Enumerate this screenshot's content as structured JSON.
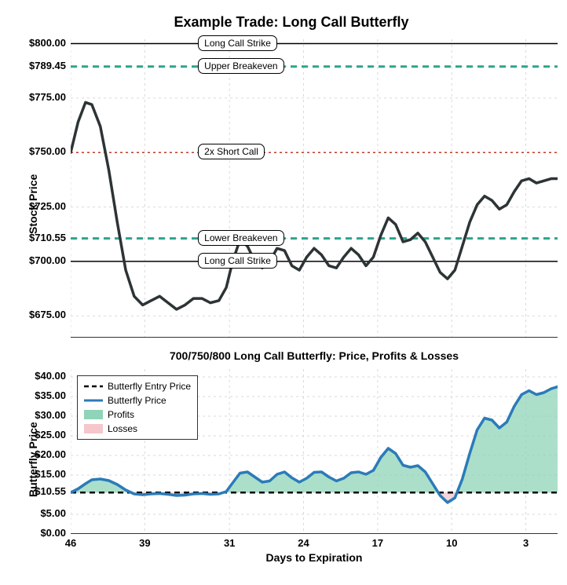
{
  "title": "Example Trade: Long Call Butterfly",
  "top": {
    "ylabel": "Stock Price",
    "ylim": [
      665,
      802
    ],
    "background_color": "#ffffff",
    "grid_color": "#d9d9d9",
    "yticks": [
      {
        "v": 675,
        "label": "$675.00"
      },
      {
        "v": 700,
        "label": "$700.00"
      },
      {
        "v": 710.55,
        "label": "$710.55"
      },
      {
        "v": 725,
        "label": "$725.00"
      },
      {
        "v": 750,
        "label": "$750.00"
      },
      {
        "v": 775,
        "label": "$775.00"
      },
      {
        "v": 789.45,
        "label": "$789.45"
      },
      {
        "v": 800,
        "label": "$800.00"
      }
    ],
    "hlines": [
      {
        "v": 800,
        "color": "#000000",
        "dash": "",
        "width": 1.5,
        "label": "Long Call Strike"
      },
      {
        "v": 789.45,
        "color": "#2ca58d",
        "dash": "8,6",
        "width": 3,
        "label": "Upper Breakeven"
      },
      {
        "v": 750,
        "color": "#c0392b",
        "dash": "3,4",
        "width": 1.5,
        "label": "2x Short Call"
      },
      {
        "v": 710.55,
        "color": "#2ca58d",
        "dash": "8,6",
        "width": 3,
        "label": "Lower Breakeven"
      },
      {
        "v": 700,
        "color": "#000000",
        "dash": "",
        "width": 1.5,
        "label": "Long Call Strike"
      }
    ],
    "series": {
      "color": "#2d3436",
      "width": 3.5,
      "data": [
        [
          46,
          750
        ],
        [
          45.3,
          764
        ],
        [
          44.6,
          773
        ],
        [
          44.0,
          772
        ],
        [
          43.2,
          762
        ],
        [
          42.4,
          742
        ],
        [
          41.6,
          718
        ],
        [
          40.8,
          696
        ],
        [
          40.0,
          684
        ],
        [
          39.2,
          680
        ],
        [
          38.4,
          682
        ],
        [
          37.6,
          684
        ],
        [
          36.8,
          681
        ],
        [
          36.0,
          678
        ],
        [
          35.2,
          680
        ],
        [
          34.4,
          683
        ],
        [
          33.6,
          683
        ],
        [
          32.8,
          681
        ],
        [
          32.0,
          682
        ],
        [
          31.3,
          688
        ],
        [
          30.7,
          700
        ],
        [
          30.0,
          710
        ],
        [
          29.3,
          707
        ],
        [
          28.6,
          700
        ],
        [
          27.9,
          697
        ],
        [
          27.2,
          700
        ],
        [
          26.5,
          706
        ],
        [
          25.8,
          705
        ],
        [
          25.1,
          698
        ],
        [
          24.4,
          696
        ],
        [
          23.7,
          702
        ],
        [
          23.0,
          706
        ],
        [
          22.3,
          703
        ],
        [
          21.6,
          698
        ],
        [
          20.9,
          697
        ],
        [
          20.2,
          702
        ],
        [
          19.5,
          706
        ],
        [
          18.8,
          703
        ],
        [
          18.1,
          698
        ],
        [
          17.4,
          702
        ],
        [
          16.7,
          712
        ],
        [
          16.0,
          720
        ],
        [
          15.3,
          717
        ],
        [
          14.6,
          709
        ],
        [
          13.9,
          710
        ],
        [
          13.2,
          713
        ],
        [
          12.5,
          709
        ],
        [
          11.8,
          702
        ],
        [
          11.1,
          695
        ],
        [
          10.4,
          692
        ],
        [
          9.7,
          696
        ],
        [
          9.0,
          707
        ],
        [
          8.3,
          718
        ],
        [
          7.6,
          726
        ],
        [
          6.9,
          730
        ],
        [
          6.2,
          728
        ],
        [
          5.5,
          724
        ],
        [
          4.8,
          726
        ],
        [
          4.1,
          732
        ],
        [
          3.4,
          737
        ],
        [
          2.7,
          738
        ],
        [
          2.0,
          736
        ],
        [
          1.3,
          737
        ],
        [
          0.6,
          738
        ],
        [
          0,
          738
        ]
      ]
    }
  },
  "bottom": {
    "title": "700/750/800 Long Call Butterfly: Price, Profits & Losses",
    "ylabel": "Butterfly Price",
    "xlabel": "Days to Expiration",
    "ylim": [
      0,
      42
    ],
    "background_color": "#ffffff",
    "grid_color": "#d9d9d9",
    "yticks": [
      {
        "v": 0,
        "label": "$0.00"
      },
      {
        "v": 5,
        "label": "$5.00"
      },
      {
        "v": 10.55,
        "label": "$10.55"
      },
      {
        "v": 15,
        "label": "$15.00"
      },
      {
        "v": 20,
        "label": "$20.00"
      },
      {
        "v": 25,
        "label": "$25.00"
      },
      {
        "v": 30,
        "label": "$30.00"
      },
      {
        "v": 35,
        "label": "$35.00"
      },
      {
        "v": 40,
        "label": "$40.00"
      }
    ],
    "xticks": [
      46,
      39,
      31,
      24,
      17,
      10,
      3
    ],
    "entry_price": 10.55,
    "entry_line": {
      "color": "#000000",
      "dash": "7,5",
      "width": 2.5
    },
    "series": {
      "color": "#2b7bb9",
      "width": 3.5,
      "profit_fill": "#8fd4b8",
      "loss_fill": "#f5c6cb",
      "fill_opacity": 0.75,
      "data": [
        [
          46,
          10.55
        ],
        [
          45.3,
          11.5
        ],
        [
          44.6,
          12.8
        ],
        [
          44.0,
          13.8
        ],
        [
          43.2,
          14.0
        ],
        [
          42.4,
          13.6
        ],
        [
          41.6,
          12.6
        ],
        [
          40.8,
          11.2
        ],
        [
          40.0,
          10.2
        ],
        [
          39.2,
          10.0
        ],
        [
          38.4,
          10.2
        ],
        [
          37.6,
          10.3
        ],
        [
          36.8,
          10.1
        ],
        [
          36.0,
          9.8
        ],
        [
          35.2,
          9.9
        ],
        [
          34.4,
          10.2
        ],
        [
          33.6,
          10.3
        ],
        [
          32.8,
          10.1
        ],
        [
          32.0,
          10.2
        ],
        [
          31.3,
          10.8
        ],
        [
          30.7,
          13.0
        ],
        [
          30.0,
          15.5
        ],
        [
          29.3,
          15.8
        ],
        [
          28.6,
          14.5
        ],
        [
          27.9,
          13.2
        ],
        [
          27.2,
          13.5
        ],
        [
          26.5,
          15.2
        ],
        [
          25.8,
          15.8
        ],
        [
          25.1,
          14.3
        ],
        [
          24.4,
          13.2
        ],
        [
          23.7,
          14.2
        ],
        [
          23.0,
          15.7
        ],
        [
          22.3,
          15.8
        ],
        [
          21.6,
          14.5
        ],
        [
          20.9,
          13.5
        ],
        [
          20.2,
          14.2
        ],
        [
          19.5,
          15.6
        ],
        [
          18.8,
          15.8
        ],
        [
          18.1,
          15.2
        ],
        [
          17.4,
          16.2
        ],
        [
          16.7,
          19.5
        ],
        [
          16.0,
          21.8
        ],
        [
          15.3,
          20.5
        ],
        [
          14.6,
          17.5
        ],
        [
          13.9,
          17.0
        ],
        [
          13.2,
          17.4
        ],
        [
          12.5,
          15.8
        ],
        [
          11.8,
          12.8
        ],
        [
          11.1,
          9.8
        ],
        [
          10.4,
          8.0
        ],
        [
          9.7,
          9.2
        ],
        [
          9.0,
          14.0
        ],
        [
          8.3,
          20.5
        ],
        [
          7.6,
          26.5
        ],
        [
          6.9,
          29.5
        ],
        [
          6.2,
          29.0
        ],
        [
          5.5,
          27.0
        ],
        [
          4.8,
          28.5
        ],
        [
          4.1,
          32.5
        ],
        [
          3.4,
          35.5
        ],
        [
          2.7,
          36.5
        ],
        [
          2.0,
          35.5
        ],
        [
          1.3,
          36.0
        ],
        [
          0.6,
          37.0
        ],
        [
          0,
          37.5
        ]
      ]
    },
    "legend": {
      "entries": [
        {
          "label": "Butterfly Entry Price",
          "type": "line",
          "color": "#000000",
          "dash": "6,4",
          "width": 2.5
        },
        {
          "label": "Butterfly Price",
          "type": "line",
          "color": "#2b7bb9",
          "dash": "",
          "width": 3
        },
        {
          "label": "Profits",
          "type": "patch",
          "color": "#8fd4b8"
        },
        {
          "label": "Losses",
          "type": "patch",
          "color": "#f5c6cb"
        }
      ]
    }
  },
  "xlim": [
    46,
    0
  ]
}
